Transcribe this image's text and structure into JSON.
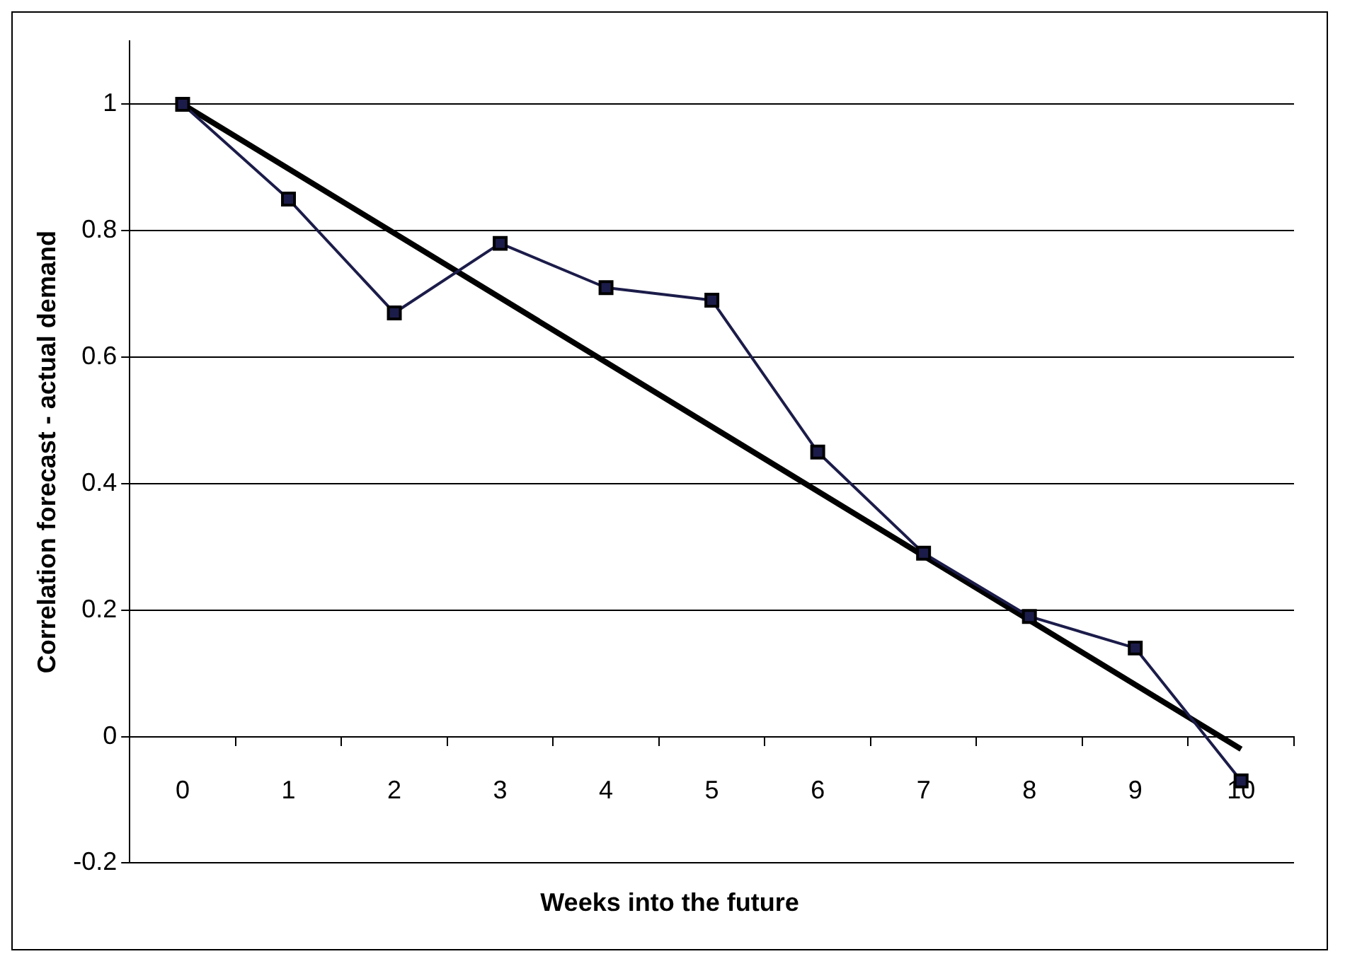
{
  "chart_data": {
    "type": "line",
    "xlabel": "Weeks into the future",
    "ylabel": "Correlation forecast - actual demand",
    "categories": [
      "0",
      "1",
      "2",
      "3",
      "4",
      "5",
      "6",
      "7",
      "8",
      "9",
      "10"
    ],
    "series": [
      {
        "color": "#1c1c4a",
        "values": [
          1.0,
          0.85,
          0.67,
          0.78,
          0.71,
          0.69,
          0.45,
          0.29,
          0.19,
          0.14,
          -0.07
        ],
        "marker": "square"
      },
      {
        "type": "line",
        "color": "#000000",
        "values": [
          1.0,
          null,
          null,
          null,
          null,
          null,
          null,
          null,
          null,
          null,
          -0.02
        ],
        "marker": "none"
      }
    ],
    "ylim": [
      -0.2,
      1.1
    ],
    "yticks": [
      -0.2,
      0,
      0.2,
      0.4,
      0.6,
      0.8,
      1
    ],
    "grid": "y",
    "legend": false,
    "line_style": "solid"
  }
}
